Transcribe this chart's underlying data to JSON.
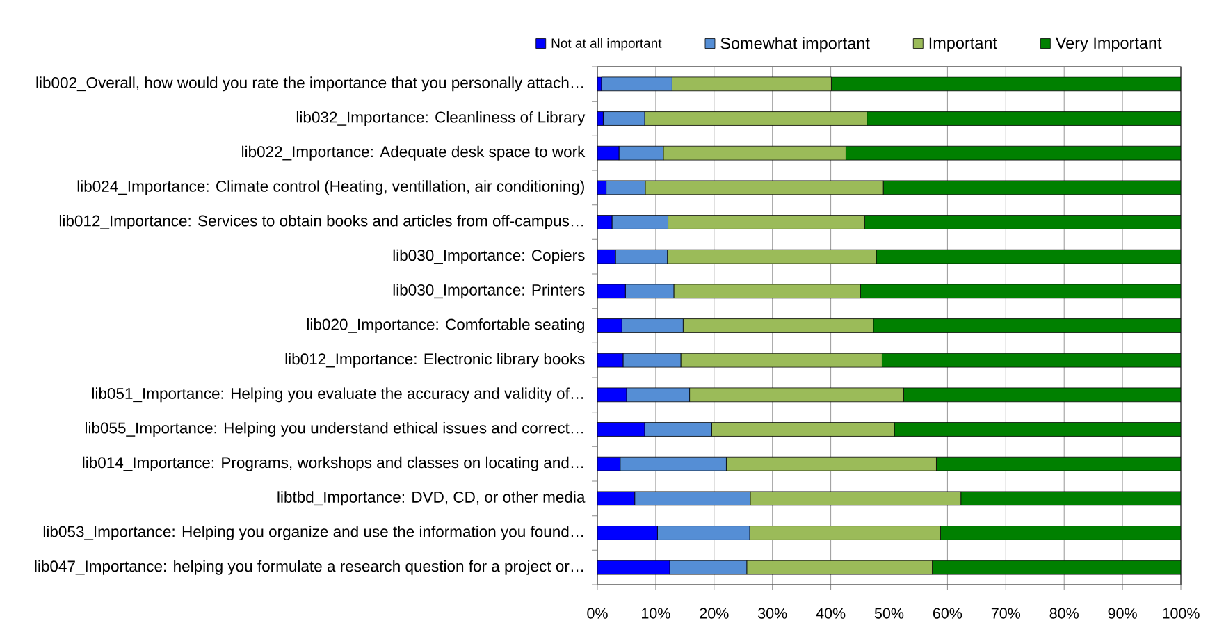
{
  "chart_data": {
    "type": "bar",
    "orientation": "horizontal",
    "stacked": true,
    "categories": [
      "lib002_Overall, how would you rate the importance that you personally attach…",
      "lib032_Importance: Cleanliness of Library",
      "lib022_Importance: Adequate desk space to work",
      "lib024_Importance: Climate control (Heating, ventillation, air conditioning)",
      "lib012_Importance: Services to obtain books and articles from off-campus…",
      "lib030_Importance: Copiers",
      "lib030_Importance: Printers",
      "lib020_Importance: Comfortable seating",
      "lib012_Importance: Electronic library books",
      "lib051_Importance: Helping you evaluate the accuracy and validity of…",
      "lib055_Importance: Helping you understand ethical issues and correct…",
      "lib014_Importance: Programs, workshops and classes on locating and…",
      "libtbd_Importance: DVD, CD, or other media",
      "lib053_Importance: Helping you organize and use the information you found…",
      "lib047_Importance: helping you formulate a research question for a project or…"
    ],
    "series": [
      {
        "name": "Not at all important",
        "color": "#0000ff",
        "values": [
          0.7,
          1.0,
          3.7,
          1.5,
          2.5,
          3.1,
          4.8,
          4.2,
          4.4,
          5.0,
          8.1,
          3.9,
          6.4,
          10.3,
          12.4
        ]
      },
      {
        "name": "Somewhat important",
        "color": "#558ed5",
        "values": [
          12.1,
          7.1,
          7.6,
          6.7,
          9.6,
          8.9,
          8.3,
          10.5,
          9.9,
          10.8,
          11.5,
          18.2,
          19.8,
          15.8,
          13.2
        ]
      },
      {
        "name": "Important",
        "color": "#9bbb59",
        "values": [
          27.3,
          38.1,
          31.3,
          40.8,
          33.7,
          35.8,
          32.0,
          32.6,
          34.5,
          36.7,
          31.3,
          36.0,
          36.1,
          32.7,
          31.8
        ]
      },
      {
        "name": "Very Important",
        "color": "#008000",
        "values": [
          59.9,
          53.8,
          57.4,
          51.0,
          54.2,
          52.2,
          54.9,
          52.7,
          51.2,
          47.5,
          49.1,
          41.9,
          37.7,
          41.2,
          42.6
        ]
      }
    ],
    "xlim": [
      0,
      100
    ],
    "xticks": [
      {
        "value": 0,
        "label": "0%"
      },
      {
        "value": 10,
        "label": "10%"
      },
      {
        "value": 20,
        "label": "20%"
      },
      {
        "value": 30,
        "label": "30%"
      },
      {
        "value": 40,
        "label": "40%"
      },
      {
        "value": 50,
        "label": "50%"
      },
      {
        "value": 60,
        "label": "60%"
      },
      {
        "value": 70,
        "label": "70%"
      },
      {
        "value": 80,
        "label": "80%"
      },
      {
        "value": 90,
        "label": "90%"
      },
      {
        "value": 100,
        "label": "100%"
      }
    ],
    "grid": "x",
    "legend": "top"
  }
}
